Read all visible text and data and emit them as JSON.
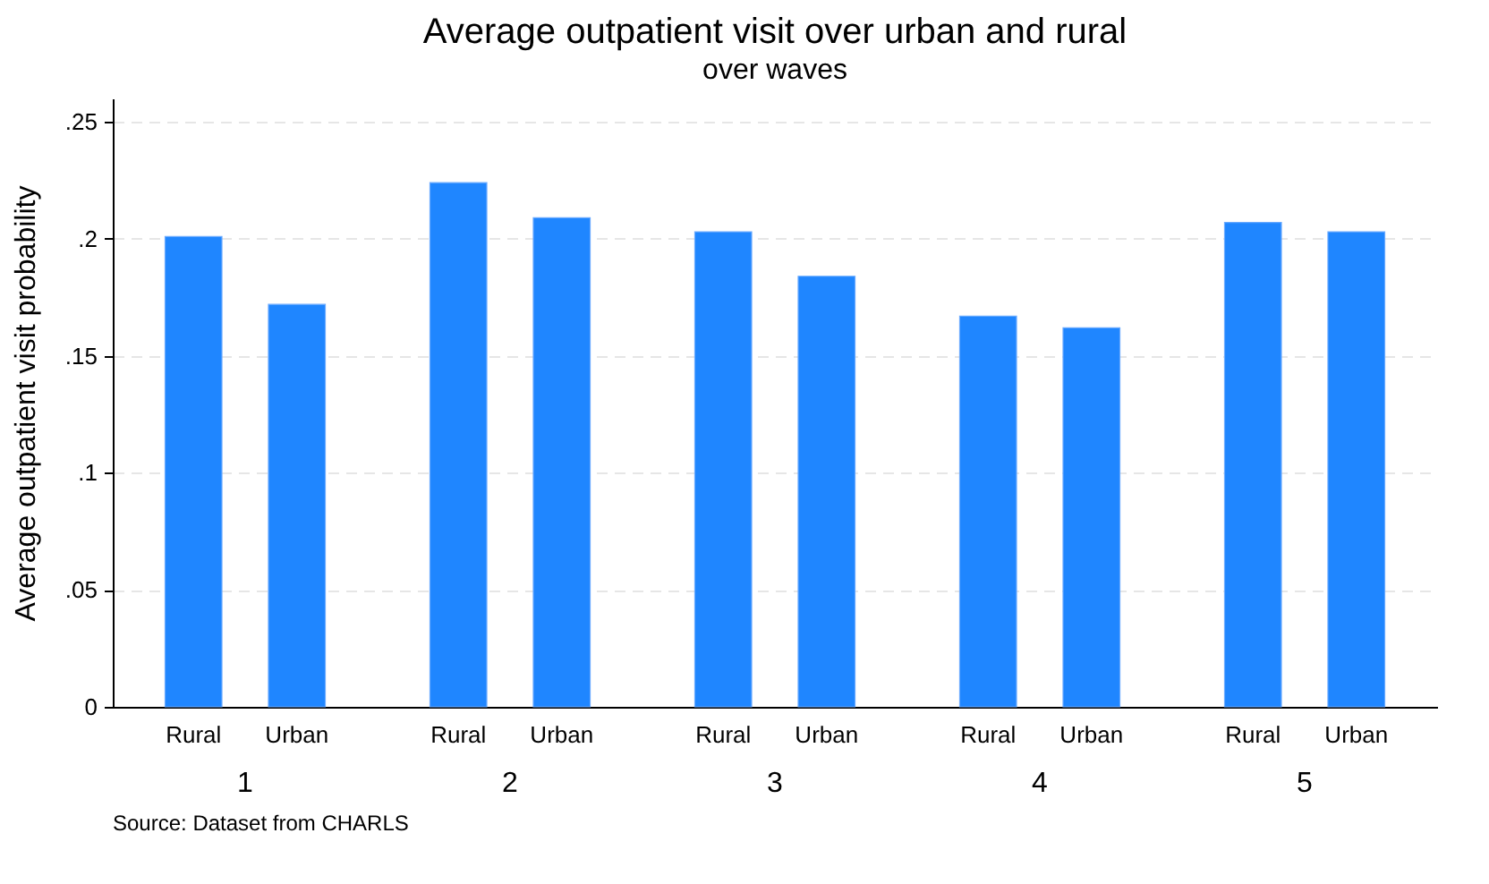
{
  "chart_data": {
    "type": "bar",
    "title": "Average outpatient visit over urban and rural",
    "subtitle": "over waves",
    "ylabel": "Average outpatient visit probability",
    "categories": [
      "1",
      "2",
      "3",
      "4",
      "5"
    ],
    "series": [
      {
        "name": "Rural",
        "color": "#1f86ff",
        "values": [
          0.201,
          0.224,
          0.203,
          0.167,
          0.207
        ]
      },
      {
        "name": "Urban",
        "color": "#1f86ff",
        "values": [
          0.172,
          0.209,
          0.184,
          0.162,
          0.203
        ]
      }
    ],
    "ylim": [
      0,
      0.26
    ],
    "yticks": [
      {
        "value": 0,
        "label": "0"
      },
      {
        "value": 0.05,
        "label": ".05"
      },
      {
        "value": 0.1,
        "label": ".1"
      },
      {
        "value": 0.15,
        "label": ".15"
      },
      {
        "value": 0.2,
        "label": ".2"
      },
      {
        "value": 0.25,
        "label": ".25"
      }
    ],
    "grid": "y",
    "annotations": [
      "Source: Dataset from CHARLS"
    ]
  }
}
